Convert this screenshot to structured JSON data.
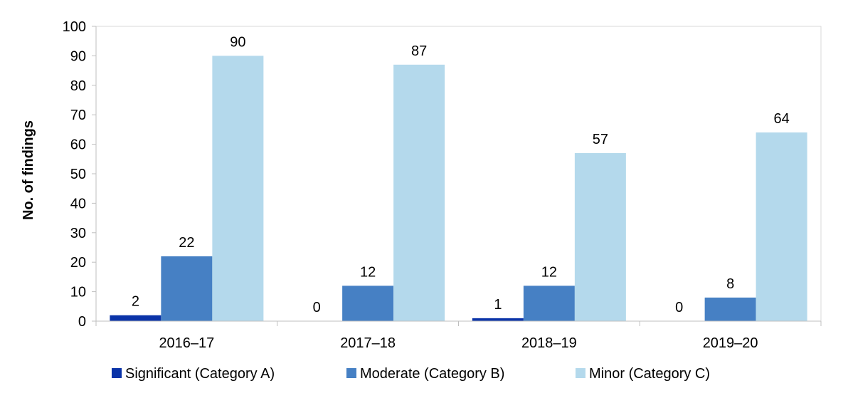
{
  "chart_data": {
    "type": "bar",
    "title": "",
    "xlabel": "",
    "ylabel": "No. of findings",
    "ylim": [
      0,
      100
    ],
    "yticks": [
      0,
      10,
      20,
      30,
      40,
      50,
      60,
      70,
      80,
      90,
      100
    ],
    "categories": [
      "2016–17",
      "2017–18",
      "2018–19",
      "2019–20"
    ],
    "series": [
      {
        "name": "Significant (Category A)",
        "color": "#0a33a8",
        "values": [
          2,
          0,
          1,
          0
        ]
      },
      {
        "name": "Moderate (Category B)",
        "color": "#4680c4",
        "values": [
          22,
          12,
          12,
          8
        ]
      },
      {
        "name": "Minor (Category C)",
        "color": "#b4d9ec",
        "values": [
          90,
          87,
          57,
          64
        ]
      }
    ],
    "data_labels": true,
    "grid": false,
    "legend_position": "bottom"
  }
}
